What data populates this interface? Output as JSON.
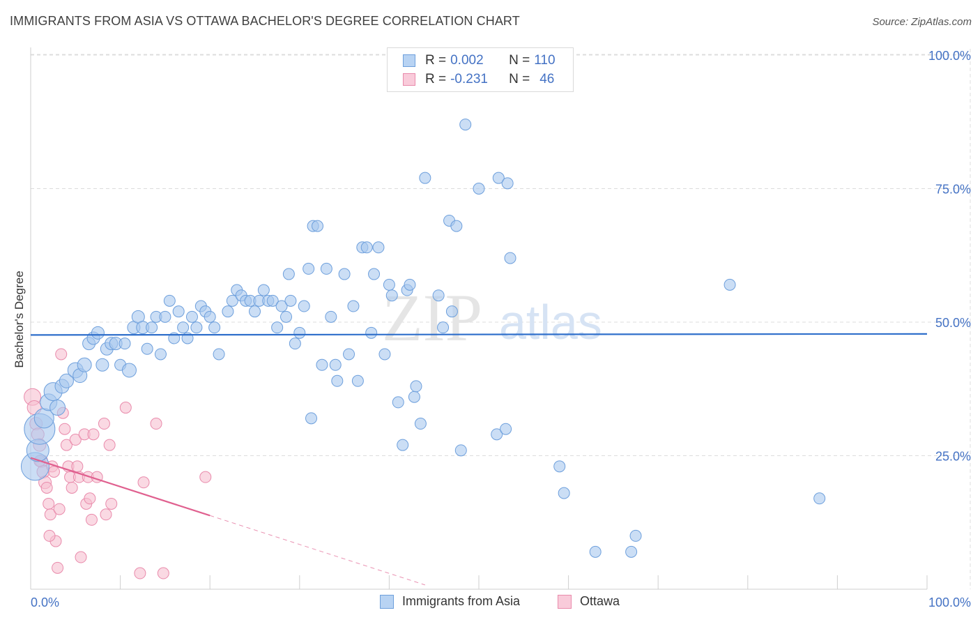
{
  "title": "IMMIGRANTS FROM ASIA VS OTTAWA BACHELOR'S DEGREE CORRELATION CHART",
  "source": "Source: ZipAtlas.com",
  "watermark": {
    "zip": "ZIP",
    "atlas": "atlas"
  },
  "legend": {
    "rows": [
      {
        "r_label": "R =",
        "r_value": "0.002",
        "n_label": "N =",
        "n_value": "110"
      },
      {
        "r_label": "R =",
        "r_value": "-0.231",
        "n_label": "N =",
        "n_value": "46"
      }
    ]
  },
  "bottom_legend": {
    "series1": "Immigrants from Asia",
    "series2": "Ottawa"
  },
  "colors": {
    "blue_fill": "#a9c8ef",
    "blue_stroke": "#6d9fdc",
    "blue_line": "#2f6fcb",
    "pink_fill": "#f6bfd0",
    "pink_stroke": "#e98aab",
    "pink_line": "#e0608f",
    "tick_label": "#4472c4",
    "grid": "#dcdcdc"
  },
  "chart_data": {
    "type": "scatter",
    "title": "IMMIGRANTS FROM ASIA VS OTTAWA BACHELOR'S DEGREE CORRELATION CHART",
    "xlabel": "",
    "ylabel": "Bachelor's Degree",
    "xlim": [
      0,
      100
    ],
    "ylim": [
      0,
      100
    ],
    "x_tick_labels": [
      "0.0%",
      "100.0%"
    ],
    "y_tick_labels": [
      "25.0%",
      "50.0%",
      "75.0%",
      "100.0%"
    ],
    "y_ticks": [
      25,
      50,
      75,
      100
    ],
    "grid": true,
    "legend_position": "top-center",
    "series": [
      {
        "name": "Immigrants from Asia",
        "color": "#a9c8ef",
        "trend": {
          "x0": 0,
          "y0": 47.6,
          "x1": 100,
          "y1": 47.8
        },
        "points": [
          [
            0.5,
            23,
            20
          ],
          [
            0.8,
            26,
            16
          ],
          [
            1,
            30,
            22
          ],
          [
            1.5,
            32,
            14
          ],
          [
            2,
            35,
            12
          ],
          [
            2.5,
            37,
            13
          ],
          [
            3,
            34,
            11
          ],
          [
            3.5,
            38,
            10
          ],
          [
            4,
            39,
            10
          ],
          [
            5,
            41,
            11
          ],
          [
            5.5,
            40,
            10
          ],
          [
            6,
            42,
            10
          ],
          [
            6.5,
            46,
            9
          ],
          [
            7,
            47,
            9
          ],
          [
            7.5,
            48,
            9
          ],
          [
            8,
            42,
            9
          ],
          [
            8.5,
            45,
            9
          ],
          [
            9,
            46,
            9
          ],
          [
            9.5,
            46,
            9
          ],
          [
            10,
            42,
            8
          ],
          [
            10.5,
            46,
            8
          ],
          [
            11,
            41,
            10
          ],
          [
            11.5,
            49,
            9
          ],
          [
            12,
            51,
            9
          ],
          [
            12.5,
            49,
            9
          ],
          [
            13,
            45,
            8
          ],
          [
            13.5,
            49,
            8
          ],
          [
            14,
            51,
            8
          ],
          [
            14.5,
            44,
            8
          ],
          [
            15,
            51,
            8
          ],
          [
            15.5,
            54,
            8
          ],
          [
            16,
            47,
            8
          ],
          [
            16.5,
            52,
            8
          ],
          [
            17,
            49,
            8
          ],
          [
            17.5,
            47,
            8
          ],
          [
            18,
            51,
            8
          ],
          [
            18.5,
            49,
            8
          ],
          [
            19,
            53,
            8
          ],
          [
            19.5,
            52,
            8
          ],
          [
            20,
            51,
            8
          ],
          [
            20.5,
            49,
            8
          ],
          [
            21,
            44,
            8
          ],
          [
            22,
            52,
            8
          ],
          [
            22.5,
            54,
            8
          ],
          [
            23,
            56,
            8
          ],
          [
            23.5,
            55,
            8
          ],
          [
            24,
            54,
            8
          ],
          [
            24.5,
            54,
            8
          ],
          [
            25,
            52,
            8
          ],
          [
            25.5,
            54,
            8
          ],
          [
            26,
            56,
            8
          ],
          [
            26.5,
            54,
            8
          ],
          [
            27,
            54,
            8
          ],
          [
            27.5,
            49,
            8
          ],
          [
            28,
            53,
            8
          ],
          [
            28.5,
            51,
            8
          ],
          [
            28.8,
            59,
            8
          ],
          [
            29,
            54,
            8
          ],
          [
            29.5,
            46,
            8
          ],
          [
            30,
            48,
            8
          ],
          [
            30.5,
            53,
            8
          ],
          [
            31,
            60,
            8
          ],
          [
            31.3,
            32,
            8
          ],
          [
            31.5,
            68,
            8
          ],
          [
            32,
            68,
            8
          ],
          [
            32.5,
            42,
            8
          ],
          [
            33,
            60,
            8
          ],
          [
            33.5,
            51,
            8
          ],
          [
            34,
            42,
            8
          ],
          [
            34.2,
            39,
            8
          ],
          [
            35,
            59,
            8
          ],
          [
            35.5,
            44,
            8
          ],
          [
            36,
            53,
            8
          ],
          [
            36.5,
            39,
            8
          ],
          [
            37,
            64,
            8
          ],
          [
            37.5,
            64,
            8
          ],
          [
            38,
            48,
            8
          ],
          [
            38.3,
            59,
            8
          ],
          [
            38.8,
            64,
            8
          ],
          [
            39.5,
            44,
            8
          ],
          [
            40,
            57,
            8
          ],
          [
            40.3,
            55,
            8
          ],
          [
            41,
            35,
            8
          ],
          [
            41.5,
            27,
            8
          ],
          [
            42,
            56,
            8
          ],
          [
            42.3,
            57,
            8
          ],
          [
            42.8,
            36,
            8
          ],
          [
            43,
            38,
            8
          ],
          [
            43.5,
            31,
            8
          ],
          [
            44,
            77,
            8
          ],
          [
            45.5,
            55,
            8
          ],
          [
            46,
            49,
            8
          ],
          [
            46.7,
            69,
            8
          ],
          [
            47,
            52,
            8
          ],
          [
            47.5,
            68,
            8
          ],
          [
            48,
            26,
            8
          ],
          [
            48.5,
            87,
            8
          ],
          [
            50,
            75,
            8
          ],
          [
            52,
            29,
            8
          ],
          [
            52.2,
            77,
            8
          ],
          [
            53,
            30,
            8
          ],
          [
            53.2,
            76,
            8
          ],
          [
            53.5,
            62,
            8
          ],
          [
            59,
            23,
            8
          ],
          [
            59.5,
            18,
            8
          ],
          [
            63,
            7,
            8
          ],
          [
            67,
            7,
            8
          ],
          [
            67.5,
            10,
            8
          ],
          [
            78,
            57,
            8
          ],
          [
            88,
            17,
            8
          ]
        ]
      },
      {
        "name": "Ottawa",
        "color": "#f6bfd0",
        "trend": {
          "x0": 0,
          "y0": 24.6,
          "x1": 20,
          "y1": 13.8,
          "dash_to": {
            "x": 44,
            "y": 0.8
          }
        },
        "points": [
          [
            0.2,
            36,
            12
          ],
          [
            0.4,
            34,
            10
          ],
          [
            0.6,
            31,
            9
          ],
          [
            0.8,
            29,
            9
          ],
          [
            1,
            27,
            9
          ],
          [
            1.2,
            24,
            9
          ],
          [
            1.4,
            22,
            9
          ],
          [
            1.6,
            20,
            9
          ],
          [
            1.8,
            19,
            8
          ],
          [
            2,
            16,
            8
          ],
          [
            2.2,
            14,
            8
          ],
          [
            2.4,
            23,
            8
          ],
          [
            2.6,
            22,
            8
          ],
          [
            2.8,
            9,
            8
          ],
          [
            3,
            4,
            8
          ],
          [
            3.2,
            15,
            8
          ],
          [
            3.4,
            44,
            8
          ],
          [
            3.6,
            33,
            8
          ],
          [
            3.8,
            30,
            8
          ],
          [
            4,
            27,
            8
          ],
          [
            4.2,
            23,
            8
          ],
          [
            4.4,
            21,
            8
          ],
          [
            4.6,
            19,
            8
          ],
          [
            5,
            28,
            8
          ],
          [
            5.2,
            23,
            8
          ],
          [
            5.4,
            21,
            8
          ],
          [
            5.6,
            6,
            8
          ],
          [
            6,
            29,
            8
          ],
          [
            6.2,
            16,
            8
          ],
          [
            6.4,
            21,
            8
          ],
          [
            6.6,
            17,
            8
          ],
          [
            6.8,
            13,
            8
          ],
          [
            7,
            29,
            8
          ],
          [
            7.4,
            21,
            8
          ],
          [
            8.2,
            31,
            8
          ],
          [
            8.4,
            14,
            8
          ],
          [
            8.8,
            27,
            8
          ],
          [
            9,
            16,
            8
          ],
          [
            10.6,
            34,
            8
          ],
          [
            12.2,
            3,
            8
          ],
          [
            12.6,
            20,
            8
          ],
          [
            14,
            31,
            8
          ],
          [
            14.8,
            3,
            8
          ],
          [
            19.5,
            21,
            8
          ],
          [
            2.1,
            10,
            8
          ],
          [
            1.0,
            24,
            8
          ]
        ]
      }
    ]
  }
}
